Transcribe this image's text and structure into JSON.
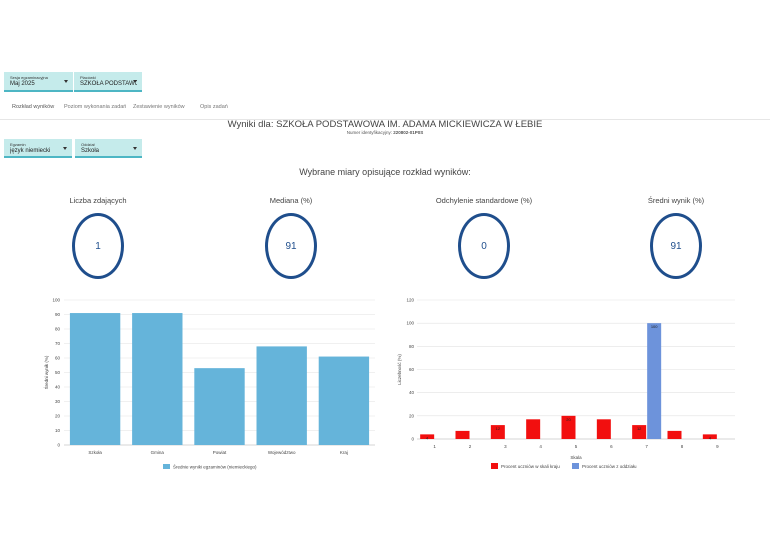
{
  "filters": {
    "session": {
      "label": "Sesja egzaminacyjna",
      "value": "Maj 2025"
    },
    "school": {
      "label": "Placówki",
      "value": "SZKOŁA PODSTAWOWA..."
    },
    "exam": {
      "label": "Egzamin",
      "value": "język niemiecki"
    },
    "unit": {
      "label": "Oddział",
      "value": "Szkoła"
    }
  },
  "tabs": [
    "Rozkład wyników",
    "Poziom wykonania zadań",
    "Zestawienie wyników",
    "Opis zadań"
  ],
  "header": {
    "title": "Wyniki dla: SZKOŁA PODSTAWOWA IM. ADAMA MICKIEWICZA W ŁEBIE",
    "id_label": "Numer identyfikacyjny:",
    "id_value": "220802-01P0S"
  },
  "section_title": "Wybrane miary opisujące rozkład wyników:",
  "metrics": [
    {
      "label": "Liczba zdających",
      "value": "1"
    },
    {
      "label": "Mediana (%)",
      "value": "91"
    },
    {
      "label": "Odchylenie standardowe (%)",
      "value": "0"
    },
    {
      "label": "Średni wynik (%)",
      "value": "91"
    }
  ],
  "colors": {
    "bar_blue": "#65b4da",
    "bar_red": "#f20f0f",
    "bar_steel": "#6d93db",
    "circle": "#1f4e8c",
    "accent": "#c5ebeb"
  },
  "chart_data": [
    {
      "type": "bar",
      "categories": [
        "Szkoła",
        "Gmina",
        "Powiat",
        "Województwo",
        "Kraj"
      ],
      "values": [
        91,
        91,
        53,
        68,
        61
      ],
      "ylabel": "Średni wynik (%)",
      "ylim": [
        0,
        100
      ],
      "yticks": [
        0,
        10,
        20,
        30,
        40,
        50,
        60,
        70,
        80,
        90,
        100
      ],
      "legend": "Średnie wyniki egzaminów (niemieckiego)",
      "grid": true
    },
    {
      "type": "bar",
      "x": [
        1,
        2,
        3,
        4,
        5,
        6,
        7,
        8,
        9
      ],
      "xlabel": "Skala",
      "ylabel": "Liczebność (%)",
      "ylim": [
        0,
        120
      ],
      "yticks": [
        0,
        20,
        40,
        60,
        80,
        100,
        120
      ],
      "series": [
        {
          "name": "Procent uczniów w skali kraju",
          "values": [
            4,
            7,
            12,
            17,
            20,
            17,
            12,
            7,
            4
          ],
          "data_labels": [
            "4",
            "",
            "12",
            "",
            "20",
            "",
            "12",
            "",
            "4"
          ]
        },
        {
          "name": "Procent uczniów z oddziału",
          "values": [
            0,
            0,
            0,
            0,
            0,
            0,
            100,
            0,
            0
          ],
          "data_labels": [
            "",
            "",
            "",
            "",
            "",
            "",
            "100",
            "",
            ""
          ]
        }
      ],
      "grid": true
    }
  ]
}
